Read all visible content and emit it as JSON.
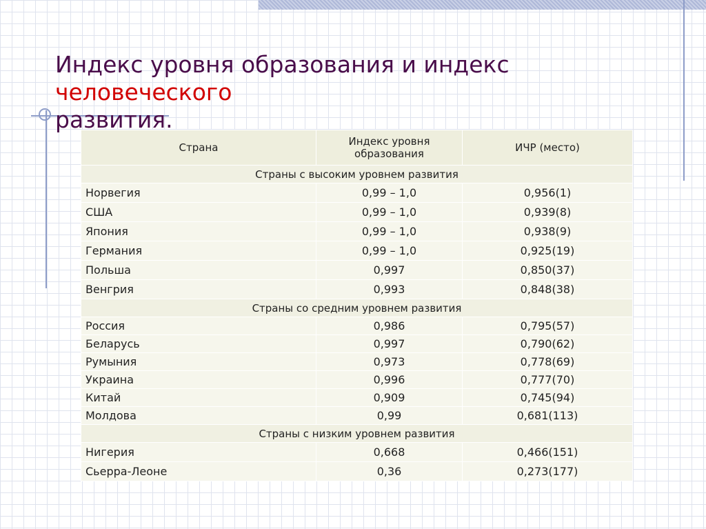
{
  "title": {
    "part1": "Индекс уровня образования и индекс ",
    "part2": "человеческого",
    "part3": "развития."
  },
  "table": {
    "headers": [
      "Страна",
      "Индекс уровня образования",
      "ИЧР (место)"
    ],
    "groups": [
      {
        "label": "Страны с высоким уровнем развития",
        "rows": [
          [
            "Норвегия",
            "0,99 – 1,0",
            "0,956(1)"
          ],
          [
            "США",
            "0,99 – 1,0",
            "0,939(8)"
          ],
          [
            "Япония",
            "0,99 – 1,0",
            "0,938(9)"
          ],
          [
            "Германия",
            "0,99 – 1,0",
            "0,925(19)"
          ],
          [
            "Польша",
            "0,997",
            "0,850(37)"
          ],
          [
            "Венгрия",
            "0,993",
            "0,848(38)"
          ]
        ]
      },
      {
        "label": "Страны со средним уровнем развития",
        "rows": [
          [
            "Россия",
            "0,986",
            "0,795(57)"
          ],
          [
            "Беларусь",
            "0,997",
            "0,790(62)"
          ],
          [
            "Румыния",
            "0,973",
            "0,778(69)"
          ],
          [
            "Украина",
            "0,996",
            "0,777(70)"
          ],
          [
            "Китай",
            "0,909",
            "0,745(94)"
          ],
          [
            "Молдова",
            "0,99",
            "0,681(113)"
          ]
        ]
      },
      {
        "label": "Страны с низким уровнем развития",
        "rows": [
          [
            "Нигерия",
            "0,668",
            "0,466(151)"
          ],
          [
            "Сьерра-Леоне",
            "0,36",
            "0,273(177)"
          ]
        ]
      }
    ]
  }
}
